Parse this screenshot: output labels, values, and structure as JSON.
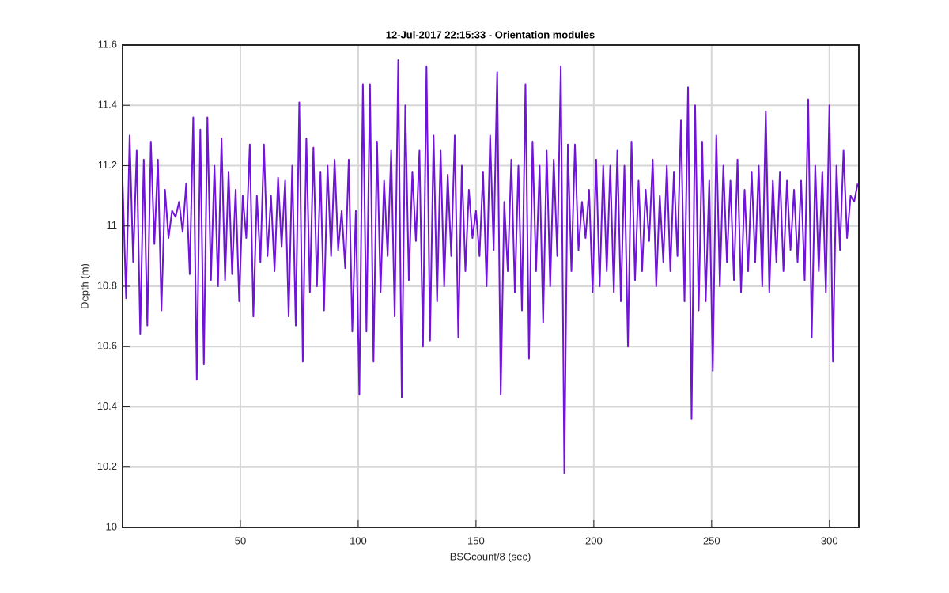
{
  "chart_data": {
    "type": "line",
    "title": "12-Jul-2017 22:15:33 - Orientation modules",
    "x_label": "BSGcount/8 (sec)",
    "y_label": "Depth (m)",
    "xlim": [
      0,
      312.5
    ],
    "ylim": [
      10,
      11.6
    ],
    "xticks": [
      50,
      100,
      150,
      200,
      250,
      300
    ],
    "yticks": [
      10,
      10.2,
      10.4,
      10.6,
      10.8,
      11,
      11.2,
      11.4,
      11.6
    ],
    "grid": true,
    "series": [
      {
        "name": "Depth",
        "color": "#7014d6",
        "x": [
          0,
          1.5,
          3,
          4.5,
          6,
          7.5,
          9,
          10.5,
          12,
          13.5,
          15,
          16.5,
          18,
          19.5,
          21,
          22.5,
          24,
          25.5,
          27,
          28.5,
          30,
          31.5,
          33,
          34.5,
          36,
          37.5,
          39,
          40.5,
          42,
          43.5,
          45,
          46.5,
          48,
          49.5,
          51,
          52.5,
          54,
          55.5,
          57,
          58.5,
          60,
          61.5,
          63,
          64.5,
          66,
          67.5,
          69,
          70.5,
          72,
          73.5,
          75,
          76.5,
          78,
          79.5,
          81,
          82.5,
          84,
          85.5,
          87,
          88.5,
          90,
          91.5,
          93,
          94.5,
          96,
          97.5,
          99,
          100.5,
          102,
          103.5,
          105,
          106.5,
          108,
          109.5,
          111,
          112.5,
          114,
          115.5,
          117,
          118.5,
          120,
          121.5,
          123,
          124.5,
          126,
          127.5,
          129,
          130.5,
          132,
          133.5,
          135,
          136.5,
          138,
          139.5,
          141,
          142.5,
          144,
          145.5,
          147,
          148.5,
          150,
          151.5,
          153,
          154.5,
          156,
          157.5,
          159,
          160.5,
          162,
          163.5,
          165,
          166.5,
          168,
          169.5,
          171,
          172.5,
          174,
          175.5,
          177,
          178.5,
          180,
          181.5,
          183,
          184.5,
          186,
          187.5,
          189,
          190.5,
          192,
          193.5,
          195,
          196.5,
          198,
          199.5,
          201,
          202.5,
          204,
          205.5,
          207,
          208.5,
          210,
          211.5,
          213,
          214.5,
          216,
          217.5,
          219,
          220.5,
          222,
          223.5,
          225,
          226.5,
          228,
          229.5,
          231,
          232.5,
          234,
          235.5,
          237,
          238.5,
          240,
          241.5,
          243,
          244.5,
          246,
          247.5,
          249,
          250.5,
          252,
          253.5,
          255,
          256.5,
          258,
          259.5,
          261,
          262.5,
          264,
          265.5,
          267,
          268.5,
          270,
          271.5,
          273,
          274.5,
          276,
          277.5,
          279,
          280.5,
          282,
          283.5,
          285,
          286.5,
          288,
          289.5,
          291,
          292.5,
          294,
          295.5,
          297,
          298.5,
          300,
          301.5,
          303,
          304.5,
          306,
          307.5,
          309,
          310.5,
          312
        ],
        "values": [
          11.15,
          10.76,
          11.3,
          10.88,
          11.25,
          10.64,
          11.22,
          10.67,
          11.28,
          10.94,
          11.22,
          10.72,
          11.12,
          10.96,
          11.05,
          11.03,
          11.08,
          10.98,
          11.14,
          10.84,
          11.36,
          10.49,
          11.32,
          10.54,
          11.36,
          10.82,
          11.2,
          10.8,
          11.29,
          10.82,
          11.18,
          10.84,
          11.12,
          10.75,
          11.1,
          10.96,
          11.27,
          10.7,
          11.1,
          10.88,
          11.27,
          10.9,
          11.1,
          10.85,
          11.16,
          10.93,
          11.15,
          10.7,
          11.2,
          10.67,
          11.41,
          10.55,
          11.29,
          10.78,
          11.26,
          10.8,
          11.18,
          10.72,
          11.2,
          10.9,
          11.22,
          10.92,
          11.05,
          10.86,
          11.22,
          10.65,
          11.05,
          10.44,
          11.47,
          10.65,
          11.47,
          10.55,
          11.28,
          10.78,
          11.15,
          10.9,
          11.25,
          10.7,
          11.55,
          10.43,
          11.4,
          10.82,
          11.18,
          10.95,
          11.25,
          10.6,
          11.53,
          10.62,
          11.3,
          10.75,
          11.25,
          10.8,
          11.17,
          10.9,
          11.3,
          10.63,
          11.2,
          10.85,
          11.12,
          10.96,
          11.05,
          10.9,
          11.18,
          10.8,
          11.3,
          10.92,
          11.51,
          10.44,
          11.08,
          10.85,
          11.22,
          10.78,
          11.2,
          10.72,
          11.47,
          10.56,
          11.28,
          10.85,
          11.2,
          10.68,
          11.25,
          10.8,
          11.22,
          10.9,
          11.53,
          10.18,
          11.27,
          10.85,
          11.27,
          10.92,
          11.08,
          10.96,
          11.12,
          10.78,
          11.22,
          10.8,
          11.2,
          10.85,
          11.2,
          10.78,
          11.25,
          10.75,
          11.2,
          10.6,
          11.28,
          10.82,
          11.15,
          10.85,
          11.12,
          10.95,
          11.22,
          10.8,
          11.1,
          10.88,
          11.2,
          10.85,
          11.18,
          10.9,
          11.35,
          10.75,
          11.46,
          10.36,
          11.4,
          10.72,
          11.28,
          10.75,
          11.15,
          10.52,
          11.3,
          10.8,
          11.2,
          10.88,
          11.15,
          10.82,
          11.22,
          10.78,
          11.12,
          10.85,
          11.18,
          10.88,
          11.2,
          10.8,
          11.38,
          10.78,
          11.15,
          10.88,
          11.18,
          10.85,
          11.15,
          10.92,
          11.12,
          10.88,
          11.15,
          10.82,
          11.42,
          10.63,
          11.2,
          10.85,
          11.18,
          10.78,
          11.4,
          10.55,
          11.2,
          10.92,
          11.25,
          10.96,
          11.1,
          11.08,
          11.14
        ]
      }
    ]
  }
}
